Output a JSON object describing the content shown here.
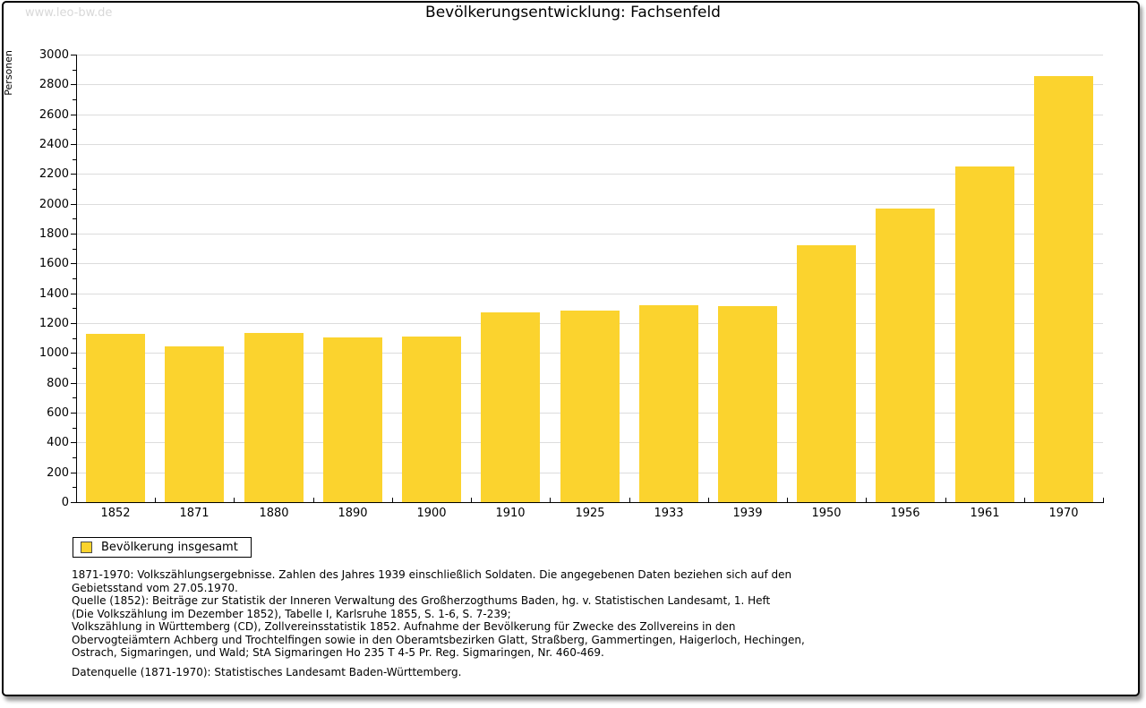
{
  "page": {
    "watermark": "www.leo-bw.de"
  },
  "chart_data": {
    "type": "bar",
    "title": "Bevölkerungsentwicklung: Fachsenfeld",
    "ylabel": "Personen",
    "xlabel": "",
    "categories": [
      "1852",
      "1871",
      "1880",
      "1890",
      "1900",
      "1910",
      "1925",
      "1933",
      "1939",
      "1950",
      "1956",
      "1961",
      "1970"
    ],
    "values": [
      1130,
      1043,
      1135,
      1103,
      1110,
      1270,
      1285,
      1320,
      1316,
      1722,
      1970,
      2250,
      2857
    ],
    "ylim": [
      0,
      3000
    ],
    "ytick_step": 200,
    "yminor_step": 100,
    "grid": true,
    "legend_position": "bottom-left",
    "legend": [
      {
        "label": "Bevölkerung insgesamt",
        "color": "#fbd32e"
      }
    ],
    "colors": {
      "bar": "#fbd32e",
      "grid": "#dcdcdc",
      "axis": "#000000",
      "watermark": "#d8d8d8"
    }
  },
  "footer": {
    "lines": [
      "1871-1970: Volkszählungsergebnisse. Zahlen des Jahres 1939 einschließlich Soldaten. Die angegebenen Daten beziehen sich auf den",
      "Gebietsstand vom 27.05.1970.",
      "Quelle (1852): Beiträge zur Statistik der Inneren Verwaltung des Großherzogthums Baden, hg. v. Statistischen Landesamt, 1. Heft",
      "(Die Volkszählung im Dezember 1852), Tabelle I, Karlsruhe 1855, S. 1-6, S. 7-239;",
      "Volkszählung in Württemberg (CD), Zollvereinsstatistik 1852. Aufnahme der Bevölkerung für Zwecke des Zollvereins in den",
      "Obervogteiämtern Achberg und Trochtelfingen sowie in den Oberamtsbezirken Glatt, Straßberg, Gammertingen, Haigerloch, Hechingen,",
      "Ostrach, Sigmaringen, und Wald; StA Sigmaringen Ho 235 T 4-5 Pr. Reg. Sigmaringen, Nr. 460-469."
    ],
    "datasource": "Datenquelle (1871-1970): Statistisches Landesamt Baden-Württemberg."
  }
}
